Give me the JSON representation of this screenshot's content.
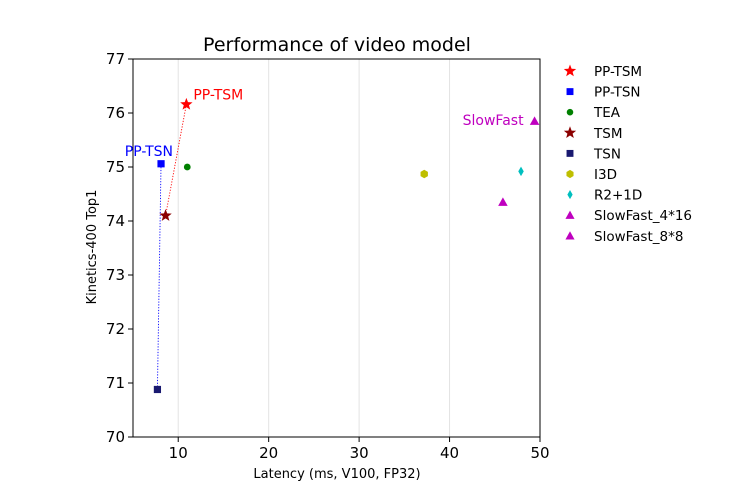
{
  "chart_data": {
    "type": "scatter",
    "title": "Performance of video model",
    "xlabel": "Latency (ms, V100, FP32)",
    "ylabel": "Kinetics-400 Top1",
    "xlim": [
      5,
      50
    ],
    "ylim": [
      70,
      77
    ],
    "xticks": [
      10,
      20,
      30,
      40,
      50
    ],
    "yticks": [
      70,
      71,
      72,
      73,
      74,
      75,
      76,
      77
    ],
    "grid": "x-only",
    "legend_position": "outside-right",
    "series": [
      {
        "name": "PP-TSM",
        "marker": "star",
        "color": "#ff0000",
        "points": [
          {
            "x": 10.9,
            "y": 76.16
          }
        ]
      },
      {
        "name": "PP-TSN",
        "marker": "square",
        "color": "#0000ff",
        "points": [
          {
            "x": 8.1,
            "y": 75.06
          }
        ]
      },
      {
        "name": "TEA",
        "marker": "circle",
        "color": "#008000",
        "points": [
          {
            "x": 11.0,
            "y": 75.0
          }
        ]
      },
      {
        "name": "TSM",
        "marker": "star",
        "color": "#8b0000",
        "points": [
          {
            "x": 8.6,
            "y": 74.1
          }
        ]
      },
      {
        "name": "TSN",
        "marker": "square",
        "color": "#191970",
        "points": [
          {
            "x": 7.7,
            "y": 70.88
          }
        ]
      },
      {
        "name": "I3D",
        "marker": "hexagon",
        "color": "#bfbf00",
        "points": [
          {
            "x": 37.2,
            "y": 74.87
          }
        ]
      },
      {
        "name": "R2+1D",
        "marker": "diamond",
        "color": "#00bfbf",
        "points": [
          {
            "x": 47.9,
            "y": 74.92
          }
        ]
      },
      {
        "name": "SlowFast_4*16",
        "marker": "triangle",
        "color": "#bf00bf",
        "points": [
          {
            "x": 45.9,
            "y": 74.35
          }
        ]
      },
      {
        "name": "SlowFast_8*8",
        "marker": "triangle",
        "color": "#bf00bf",
        "points": [
          {
            "x": 49.4,
            "y": 75.85
          }
        ]
      }
    ],
    "connectors": [
      {
        "from": "TSM",
        "to": "PP-TSM",
        "color": "#ff0000",
        "style": "dotted"
      },
      {
        "from": "TSN",
        "to": "PP-TSN",
        "color": "#0000ff",
        "style": "dotted"
      }
    ],
    "annotations": [
      {
        "text": "PP-TSM",
        "series": "PP-TSM",
        "color": "#ff0000"
      },
      {
        "text": "PP-TSN",
        "series": "PP-TSN",
        "color": "#0000ff"
      },
      {
        "text": "SlowFast",
        "series": "SlowFast_8*8",
        "color": "#bf00bf"
      }
    ]
  }
}
